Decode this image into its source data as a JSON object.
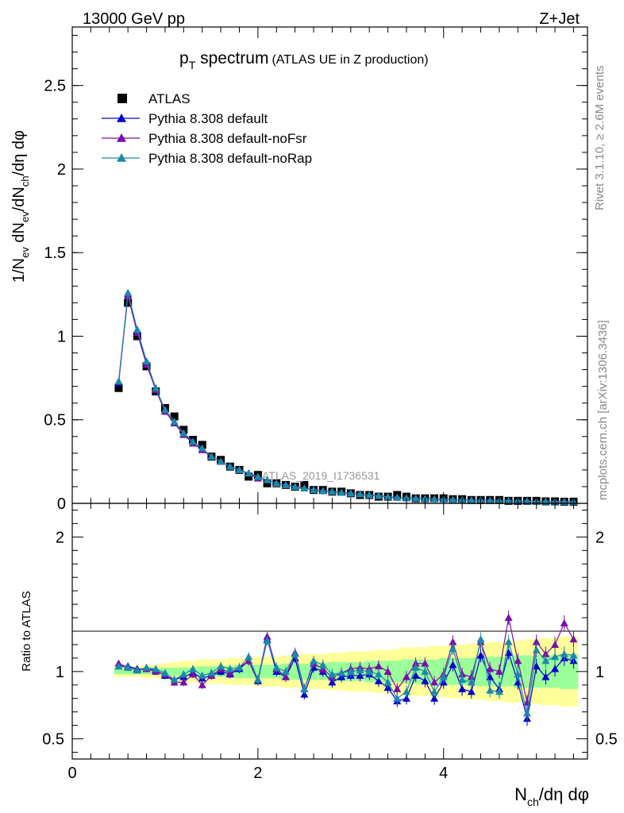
{
  "header": {
    "left": "13000 GeV pp",
    "right": "Z+Jet"
  },
  "title": {
    "main": "p",
    "sub": "T",
    "rest": " spectrum",
    "small": "(ATLAS UE in Z production)"
  },
  "side_labels": {
    "rivet": "Rivet 3.1.10, ≥ 2.6M events",
    "mcplots": "mcplots.cern.ch [arXiv:1306.3436]"
  },
  "watermark": "ATLAS_2019_I1736531",
  "axes": {
    "ylabel_top": "1/N_ev dN_ev/dN_ch/dη dφ",
    "ylabel_bottom": "Ratio to ATLAS",
    "xlabel": "N_ch/dη dφ"
  },
  "colors": {
    "atlas": "#000000",
    "default": "#0000cc",
    "noFsr": "#7b0ea6",
    "noRap": "#1a8aaa",
    "band_outer": "#ffff99",
    "band_inner": "#99ff99"
  },
  "chart_data": [
    {
      "type": "scatter",
      "panel": "main",
      "title": "p_T spectrum (ATLAS UE in Z production)",
      "xlabel": "N_ch/dη dφ",
      "ylabel": "1/N_ev dN_ev/dN_ch/dη dφ",
      "xlim": [
        0,
        5.55
      ],
      "ylim": [
        0,
        2.85
      ],
      "x_ticks": [
        "0",
        "2",
        "4"
      ],
      "y_ticks": [
        "0",
        "0.5",
        "1",
        "1.5",
        "2",
        "2.5"
      ],
      "legend_position": "top-left",
      "x": [
        0.5,
        0.6,
        0.7,
        0.8,
        0.9,
        1.0,
        1.1,
        1.2,
        1.3,
        1.4,
        1.5,
        1.6,
        1.7,
        1.8,
        1.9,
        2.0,
        2.1,
        2.2,
        2.3,
        2.4,
        2.5,
        2.6,
        2.7,
        2.8,
        2.9,
        3.0,
        3.1,
        3.2,
        3.3,
        3.4,
        3.5,
        3.6,
        3.7,
        3.8,
        3.9,
        4.0,
        4.1,
        4.2,
        4.3,
        4.4,
        4.5,
        4.6,
        4.7,
        4.8,
        4.9,
        5.0,
        5.1,
        5.2,
        5.3,
        5.4
      ],
      "series": [
        {
          "name": "ATLAS",
          "values": [
            0.69,
            1.2,
            1.0,
            0.82,
            0.67,
            0.57,
            0.52,
            0.44,
            0.38,
            0.35,
            0.28,
            0.26,
            0.22,
            0.2,
            0.16,
            0.17,
            0.12,
            0.12,
            0.11,
            0.1,
            0.11,
            0.08,
            0.08,
            0.07,
            0.07,
            0.06,
            0.05,
            0.05,
            0.04,
            0.04,
            0.05,
            0.04,
            0.03,
            0.03,
            0.03,
            0.03,
            0.025,
            0.025,
            0.02,
            0.02,
            0.02,
            0.02,
            0.015,
            0.015,
            0.015,
            0.015,
            0.012,
            0.012,
            0.01,
            0.01
          ]
        },
        {
          "name": "Pythia 8.308 default",
          "values": [
            0.72,
            1.25,
            1.03,
            0.84,
            0.68,
            0.55,
            0.48,
            0.42,
            0.36,
            0.32,
            0.28,
            0.25,
            0.22,
            0.2,
            0.18,
            0.15,
            0.14,
            0.12,
            0.11,
            0.1,
            0.09,
            0.08,
            0.075,
            0.07,
            0.065,
            0.06,
            0.055,
            0.05,
            0.045,
            0.04,
            0.035,
            0.032,
            0.03,
            0.028,
            0.026,
            0.024,
            0.022,
            0.02,
            0.019,
            0.018,
            0.017,
            0.016,
            0.015,
            0.014,
            0.013,
            0.012,
            0.011,
            0.011,
            0.01,
            0.01
          ]
        },
        {
          "name": "Pythia 8.308 default-noFsr",
          "values": [
            0.73,
            1.24,
            1.02,
            0.83,
            0.68,
            0.55,
            0.48,
            0.41,
            0.36,
            0.32,
            0.28,
            0.25,
            0.22,
            0.2,
            0.18,
            0.15,
            0.14,
            0.12,
            0.11,
            0.1,
            0.09,
            0.08,
            0.075,
            0.07,
            0.065,
            0.06,
            0.055,
            0.05,
            0.045,
            0.04,
            0.035,
            0.032,
            0.03,
            0.028,
            0.026,
            0.024,
            0.022,
            0.02,
            0.019,
            0.018,
            0.017,
            0.016,
            0.015,
            0.014,
            0.013,
            0.012,
            0.011,
            0.011,
            0.01,
            0.01
          ]
        },
        {
          "name": "Pythia 8.308 default-noRap",
          "values": [
            0.73,
            1.26,
            1.04,
            0.85,
            0.69,
            0.56,
            0.49,
            0.42,
            0.37,
            0.33,
            0.28,
            0.25,
            0.22,
            0.2,
            0.18,
            0.16,
            0.14,
            0.12,
            0.11,
            0.1,
            0.09,
            0.08,
            0.075,
            0.07,
            0.065,
            0.06,
            0.055,
            0.05,
            0.045,
            0.04,
            0.035,
            0.032,
            0.03,
            0.028,
            0.026,
            0.024,
            0.022,
            0.02,
            0.019,
            0.018,
            0.017,
            0.016,
            0.015,
            0.014,
            0.013,
            0.012,
            0.011,
            0.011,
            0.01,
            0.01
          ]
        }
      ]
    },
    {
      "type": "line",
      "panel": "ratio",
      "ylabel": "Ratio to ATLAS",
      "xlabel": "N_ch/dη dφ",
      "xlim": [
        0,
        5.55
      ],
      "ylim": [
        0.35,
        2.25
      ],
      "y_ticks": [
        "0.5",
        "1",
        "2"
      ],
      "x": [
        0.5,
        0.6,
        0.7,
        0.8,
        0.9,
        1.0,
        1.1,
        1.2,
        1.3,
        1.4,
        1.5,
        1.6,
        1.7,
        1.8,
        1.9,
        2.0,
        2.1,
        2.2,
        2.3,
        2.4,
        2.5,
        2.6,
        2.7,
        2.8,
        2.9,
        3.0,
        3.1,
        3.2,
        3.3,
        3.4,
        3.5,
        3.6,
        3.7,
        3.8,
        3.9,
        4.0,
        4.1,
        4.2,
        4.3,
        4.4,
        4.5,
        4.6,
        4.7,
        4.8,
        4.9,
        5.0,
        5.1,
        5.2,
        5.3,
        5.4
      ],
      "band_outer_halfwidth": [
        0.04,
        0.04,
        0.04,
        0.05,
        0.05,
        0.06,
        0.07,
        0.08,
        0.08,
        0.09,
        0.09,
        0.09,
        0.1,
        0.1,
        0.1,
        0.11,
        0.11,
        0.11,
        0.12,
        0.12,
        0.13,
        0.13,
        0.13,
        0.14,
        0.14,
        0.15,
        0.15,
        0.15,
        0.16,
        0.16,
        0.17,
        0.18,
        0.18,
        0.18,
        0.19,
        0.19,
        0.2,
        0.2,
        0.21,
        0.21,
        0.22,
        0.22,
        0.23,
        0.23,
        0.24,
        0.24,
        0.25,
        0.25,
        0.26,
        0.26
      ],
      "band_inner_halfwidth": [
        0.02,
        0.02,
        0.02,
        0.02,
        0.02,
        0.03,
        0.03,
        0.03,
        0.03,
        0.04,
        0.04,
        0.04,
        0.04,
        0.05,
        0.05,
        0.05,
        0.05,
        0.05,
        0.06,
        0.06,
        0.06,
        0.06,
        0.06,
        0.07,
        0.07,
        0.07,
        0.07,
        0.08,
        0.08,
        0.08,
        0.08,
        0.09,
        0.09,
        0.09,
        0.09,
        0.1,
        0.1,
        0.1,
        0.1,
        0.11,
        0.11,
        0.11,
        0.11,
        0.12,
        0.12,
        0.12,
        0.12,
        0.12,
        0.13,
        0.13
      ],
      "series": [
        {
          "name": "Pythia 8.308 default",
          "values": [
            1.04,
            1.04,
            1.02,
            1.02,
            1.01,
            0.97,
            0.94,
            0.96,
            0.99,
            0.95,
            0.97,
            1.0,
            0.98,
            1.02,
            1.08,
            0.93,
            1.24,
            1.0,
            0.96,
            1.1,
            0.83,
            1.03,
            1.0,
            0.92,
            0.96,
            0.97,
            0.97,
            0.98,
            0.93,
            0.88,
            0.78,
            0.8,
            0.97,
            0.93,
            0.8,
            0.92,
            1.05,
            0.87,
            0.85,
            1.12,
            0.96,
            0.87,
            1.14,
            0.92,
            0.65,
            1.04,
            0.96,
            1.02,
            1.1,
            1.08
          ]
        },
        {
          "name": "Pythia 8.308 default-noFsr",
          "values": [
            1.06,
            1.03,
            1.01,
            1.02,
            1.0,
            0.98,
            0.92,
            0.92,
            0.98,
            0.9,
            0.97,
            1.02,
            0.99,
            1.03,
            1.08,
            0.94,
            1.26,
            1.02,
            0.96,
            1.14,
            0.87,
            1.06,
            1.02,
            0.96,
            0.99,
            1.02,
            1.03,
            1.02,
            1.04,
            1.0,
            0.87,
            0.96,
            1.06,
            1.06,
            0.92,
            0.98,
            1.22,
            0.98,
            0.96,
            1.22,
            1.02,
            1.0,
            1.4,
            1.08,
            0.77,
            1.22,
            1.13,
            1.2,
            1.36,
            1.24
          ]
        },
        {
          "name": "Pythia 8.308 default-noRap",
          "values": [
            1.04,
            1.03,
            1.01,
            1.03,
            1.02,
            0.99,
            0.94,
            0.98,
            1.02,
            0.97,
            0.99,
            1.04,
            1.02,
            1.03,
            1.11,
            0.94,
            1.23,
            1.03,
            1.0,
            1.13,
            0.87,
            1.08,
            1.05,
            0.98,
            0.99,
            1.0,
            1.01,
            1.0,
            0.98,
            0.92,
            0.8,
            0.85,
            1.03,
            1.0,
            0.85,
            0.96,
            1.17,
            0.94,
            0.92,
            1.24,
            0.86,
            0.85,
            1.22,
            0.98,
            0.69,
            1.16,
            1.08,
            1.11,
            1.13,
            1.12
          ]
        }
      ]
    }
  ]
}
